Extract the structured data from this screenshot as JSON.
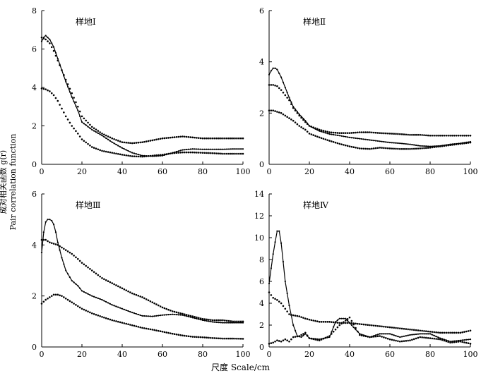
{
  "figure": {
    "ylabel_cn": "成对相关函数 g(r)",
    "ylabel_en": "Pair correlation function",
    "xlabel": "尺度 Scale/cm"
  },
  "chart_data": [
    {
      "type": "line",
      "title": "样地Ⅰ",
      "xlim": [
        0,
        100
      ],
      "ylim": [
        0,
        8
      ],
      "xticks": [
        0,
        20,
        40,
        60,
        80,
        100
      ],
      "yticks": [
        0,
        2,
        4,
        6,
        8
      ],
      "series": [
        {
          "style": "solid",
          "x": [
            0,
            1,
            2,
            3,
            4,
            6,
            8,
            10,
            12,
            15,
            18,
            20,
            25,
            30,
            35,
            40,
            45,
            50,
            55,
            60,
            65,
            70,
            75,
            80,
            85,
            90,
            95,
            100
          ],
          "y": [
            6.4,
            6.6,
            6.7,
            6.6,
            6.5,
            6.1,
            5.5,
            4.9,
            4.3,
            3.5,
            2.8,
            2.2,
            1.8,
            1.5,
            1.15,
            0.85,
            0.6,
            0.45,
            0.42,
            0.45,
            0.6,
            0.75,
            0.8,
            0.78,
            0.78,
            0.78,
            0.8,
            0.8
          ]
        },
        {
          "style": "dotted",
          "x": [
            0,
            2,
            4,
            6,
            8,
            10,
            12,
            15,
            18,
            20,
            25,
            30,
            35,
            40,
            45,
            50,
            55,
            60,
            65,
            70,
            75,
            80,
            85,
            90,
            95,
            100
          ],
          "y": [
            6.6,
            6.5,
            6.3,
            5.9,
            5.4,
            4.9,
            4.4,
            3.7,
            3.0,
            2.5,
            1.95,
            1.6,
            1.35,
            1.15,
            1.1,
            1.15,
            1.25,
            1.35,
            1.4,
            1.45,
            1.4,
            1.35,
            1.35,
            1.35,
            1.35,
            1.35
          ]
        },
        {
          "style": "dotted",
          "x": [
            0,
            2,
            4,
            6,
            8,
            10,
            12,
            15,
            18,
            20,
            25,
            30,
            35,
            40,
            45,
            50,
            55,
            60,
            65,
            70,
            75,
            80,
            85,
            90,
            95,
            100
          ],
          "y": [
            3.95,
            3.9,
            3.8,
            3.6,
            3.3,
            2.9,
            2.5,
            2.0,
            1.6,
            1.3,
            0.9,
            0.7,
            0.6,
            0.5,
            0.42,
            0.4,
            0.45,
            0.5,
            0.58,
            0.62,
            0.62,
            0.6,
            0.58,
            0.55,
            0.55,
            0.55
          ]
        }
      ]
    },
    {
      "type": "line",
      "title": "样地Ⅱ",
      "xlim": [
        0,
        100
      ],
      "ylim": [
        0,
        6
      ],
      "xticks": [
        0,
        20,
        40,
        60,
        80,
        100
      ],
      "yticks": [
        0,
        2,
        4,
        6
      ],
      "series": [
        {
          "style": "solid",
          "x": [
            0,
            1,
            2,
            3,
            4,
            5,
            6,
            8,
            10,
            12,
            15,
            18,
            20,
            25,
            30,
            35,
            40,
            45,
            50,
            55,
            60,
            65,
            70,
            75,
            80,
            85,
            90,
            95,
            100
          ],
          "y": [
            3.5,
            3.65,
            3.75,
            3.75,
            3.7,
            3.55,
            3.4,
            3.0,
            2.6,
            2.25,
            1.95,
            1.7,
            1.5,
            1.3,
            1.18,
            1.12,
            1.05,
            1.0,
            0.95,
            0.9,
            0.85,
            0.82,
            0.78,
            0.72,
            0.7,
            0.72,
            0.78,
            0.82,
            0.88
          ]
        },
        {
          "style": "dotted",
          "x": [
            0,
            2,
            4,
            6,
            8,
            10,
            12,
            15,
            18,
            20,
            25,
            30,
            35,
            40,
            45,
            50,
            55,
            60,
            65,
            70,
            75,
            80,
            85,
            90,
            95,
            100
          ],
          "y": [
            3.1,
            3.1,
            3.05,
            2.9,
            2.7,
            2.5,
            2.2,
            1.9,
            1.65,
            1.5,
            1.35,
            1.25,
            1.22,
            1.22,
            1.25,
            1.25,
            1.22,
            1.2,
            1.18,
            1.15,
            1.15,
            1.12,
            1.12,
            1.12,
            1.12,
            1.12
          ]
        },
        {
          "style": "dotted",
          "x": [
            0,
            2,
            4,
            6,
            8,
            10,
            12,
            15,
            18,
            20,
            25,
            30,
            35,
            40,
            45,
            50,
            55,
            60,
            65,
            70,
            75,
            80,
            85,
            90,
            95,
            100
          ],
          "y": [
            2.1,
            2.1,
            2.05,
            2.0,
            1.9,
            1.8,
            1.7,
            1.5,
            1.35,
            1.2,
            1.05,
            0.92,
            0.8,
            0.7,
            0.62,
            0.6,
            0.65,
            0.62,
            0.6,
            0.6,
            0.62,
            0.65,
            0.7,
            0.75,
            0.8,
            0.85
          ]
        }
      ]
    },
    {
      "type": "line",
      "title": "样地Ⅲ",
      "xlim": [
        0,
        100
      ],
      "ylim": [
        0,
        6
      ],
      "xticks": [
        0,
        20,
        40,
        60,
        80,
        100
      ],
      "yticks": [
        0,
        2,
        4,
        6
      ],
      "series": [
        {
          "style": "solid",
          "x": [
            0,
            1,
            2,
            3,
            4,
            5,
            6,
            7,
            8,
            10,
            12,
            15,
            18,
            20,
            25,
            30,
            35,
            40,
            45,
            50,
            55,
            60,
            65,
            70,
            75,
            80,
            85,
            90,
            95,
            100
          ],
          "y": [
            3.7,
            4.5,
            4.9,
            5.0,
            5.0,
            4.95,
            4.8,
            4.5,
            4.1,
            3.5,
            3.0,
            2.6,
            2.4,
            2.2,
            2.0,
            1.85,
            1.65,
            1.5,
            1.35,
            1.22,
            1.2,
            1.25,
            1.28,
            1.25,
            1.15,
            1.05,
            0.98,
            0.95,
            0.95,
            0.95
          ]
        },
        {
          "style": "dotted",
          "x": [
            0,
            2,
            4,
            6,
            8,
            10,
            12,
            15,
            18,
            20,
            25,
            30,
            35,
            40,
            45,
            50,
            55,
            60,
            65,
            70,
            75,
            80,
            85,
            90,
            95,
            100
          ],
          "y": [
            4.2,
            4.2,
            4.1,
            4.05,
            4.0,
            3.9,
            3.8,
            3.65,
            3.45,
            3.3,
            3.0,
            2.7,
            2.5,
            2.3,
            2.1,
            1.95,
            1.75,
            1.55,
            1.4,
            1.3,
            1.2,
            1.1,
            1.05,
            1.05,
            1.0,
            1.0
          ]
        },
        {
          "style": "dotted",
          "x": [
            0,
            2,
            4,
            6,
            8,
            10,
            12,
            15,
            18,
            20,
            25,
            30,
            35,
            40,
            45,
            50,
            55,
            60,
            65,
            70,
            75,
            80,
            85,
            90,
            95,
            100
          ],
          "y": [
            1.7,
            1.85,
            1.95,
            2.05,
            2.05,
            2.0,
            1.9,
            1.75,
            1.6,
            1.5,
            1.32,
            1.18,
            1.05,
            0.95,
            0.85,
            0.75,
            0.68,
            0.6,
            0.52,
            0.45,
            0.4,
            0.38,
            0.35,
            0.33,
            0.33,
            0.32
          ]
        }
      ]
    },
    {
      "type": "line",
      "title": "样地Ⅳ",
      "xlim": [
        0,
        100
      ],
      "ylim": [
        0,
        14
      ],
      "xticks": [
        0,
        20,
        40,
        60,
        80,
        100
      ],
      "yticks": [
        0,
        2,
        4,
        6,
        8,
        10,
        12,
        14
      ],
      "series": [
        {
          "style": "solid",
          "x": [
            0,
            1,
            2,
            3,
            4,
            5,
            6,
            7,
            8,
            10,
            12,
            14,
            16,
            18,
            20,
            25,
            30,
            33,
            35,
            38,
            40,
            45,
            50,
            55,
            60,
            65,
            70,
            75,
            80,
            85,
            90,
            95,
            100
          ],
          "y": [
            5.8,
            7.2,
            8.5,
            9.6,
            10.6,
            10.6,
            9.5,
            7.8,
            6.0,
            3.8,
            2.0,
            1.0,
            0.9,
            1.2,
            0.8,
            0.7,
            0.9,
            2.3,
            2.6,
            2.6,
            2.2,
            1.2,
            0.9,
            1.2,
            1.2,
            0.9,
            1.1,
            1.2,
            1.2,
            0.8,
            0.5,
            0.6,
            0.7
          ]
        },
        {
          "style": "dotted",
          "x": [
            0,
            2,
            4,
            6,
            8,
            10,
            12,
            15,
            18,
            20,
            25,
            30,
            35,
            40,
            45,
            50,
            55,
            60,
            65,
            70,
            75,
            80,
            85,
            90,
            95,
            100
          ],
          "y": [
            5.0,
            4.5,
            4.3,
            4.0,
            3.5,
            3.0,
            2.9,
            2.8,
            2.6,
            2.5,
            2.3,
            2.3,
            2.2,
            2.2,
            2.1,
            2.0,
            1.9,
            1.8,
            1.7,
            1.6,
            1.5,
            1.4,
            1.3,
            1.3,
            1.3,
            1.5
          ]
        },
        {
          "style": "dotted",
          "x": [
            0,
            2,
            4,
            6,
            8,
            10,
            12,
            15,
            18,
            20,
            25,
            30,
            35,
            40,
            45,
            50,
            55,
            60,
            65,
            70,
            75,
            80,
            85,
            90,
            95,
            100
          ],
          "y": [
            0.3,
            0.4,
            0.6,
            0.5,
            0.7,
            0.5,
            0.9,
            1.0,
            1.3,
            0.8,
            0.6,
            1.0,
            2.0,
            2.7,
            1.1,
            0.9,
            1.0,
            0.7,
            0.5,
            0.6,
            0.9,
            0.8,
            0.7,
            0.4,
            0.5,
            0.3
          ]
        }
      ]
    }
  ]
}
